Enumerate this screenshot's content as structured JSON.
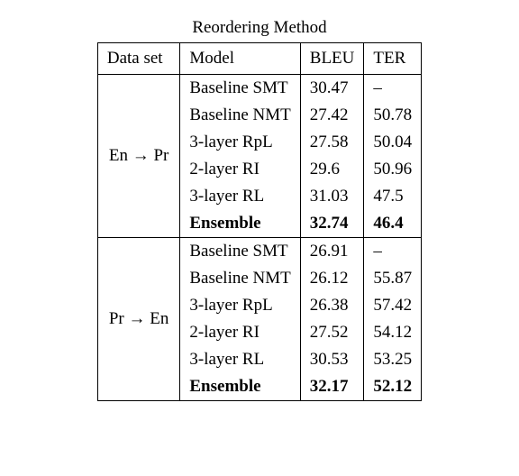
{
  "caption": "Reordering Method",
  "headers": {
    "dataset": "Data set",
    "model": "Model",
    "bleu": "BLEU",
    "ter": "TER"
  },
  "groups": [
    {
      "label_parts": [
        "En ",
        "→",
        " Pr"
      ],
      "rows": [
        {
          "model": "Baseline SMT",
          "bleu": "30.47",
          "ter": "–",
          "bold": false
        },
        {
          "model": "Baseline NMT",
          "bleu": "27.42",
          "ter": "50.78",
          "bold": false
        },
        {
          "model": "3-layer RpL",
          "bleu": "27.58",
          "ter": "50.04",
          "bold": false
        },
        {
          "model": "2-layer RI",
          "bleu": "29.6",
          "ter": "50.96",
          "bold": false
        },
        {
          "model": "3-layer RL",
          "bleu": "31.03",
          "ter": "47.5",
          "bold": false
        },
        {
          "model": "Ensemble",
          "bleu": "32.74",
          "ter": "46.4",
          "bold": true
        }
      ]
    },
    {
      "label_parts": [
        "Pr ",
        "→",
        " En"
      ],
      "rows": [
        {
          "model": "Baseline SMT",
          "bleu": "26.91",
          "ter": "–",
          "bold": false
        },
        {
          "model": "Baseline NMT",
          "bleu": "26.12",
          "ter": "55.87",
          "bold": false
        },
        {
          "model": "3-layer RpL",
          "bleu": "26.38",
          "ter": "57.42",
          "bold": false
        },
        {
          "model": "2-layer RI",
          "bleu": "27.52",
          "ter": "54.12",
          "bold": false
        },
        {
          "model": "3-layer RL",
          "bleu": "30.53",
          "ter": "53.25",
          "bold": false
        },
        {
          "model": "Ensemble",
          "bleu": "32.17",
          "ter": "52.12",
          "bold": true
        }
      ]
    }
  ]
}
